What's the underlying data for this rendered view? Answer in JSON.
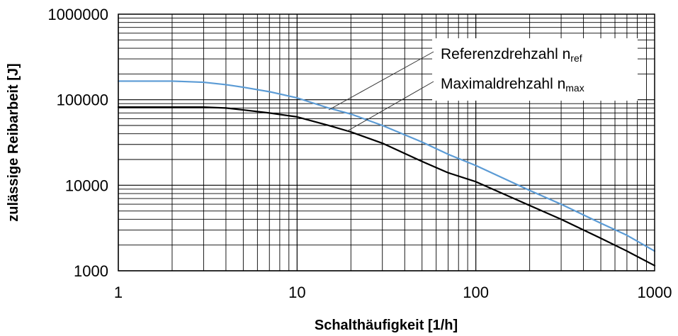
{
  "chart_data": {
    "type": "line",
    "xlabel": "Schalthäufigkeit [1/h]",
    "ylabel": "zulässige Reibarbeit [J]",
    "xscale": "log",
    "yscale": "log",
    "xlim": [
      1,
      1000
    ],
    "ylim": [
      1000,
      1000000
    ],
    "x_ticks": [
      "1",
      "10",
      "100",
      "1000"
    ],
    "y_ticks": [
      "1000",
      "10000",
      "100000",
      "1000000"
    ],
    "grid": true,
    "legend_position": "top-right",
    "series": [
      {
        "name": "Referenzdrehzahl n",
        "name_sub": "ref",
        "color": "#5b9bd5",
        "x": [
          1,
          2,
          3,
          4,
          5,
          7,
          10,
          15,
          20,
          30,
          50,
          70,
          100,
          200,
          300,
          500,
          700,
          1000
        ],
        "y": [
          165000,
          165000,
          160000,
          150000,
          140000,
          124000,
          105000,
          80000,
          68000,
          50000,
          32000,
          23000,
          17000,
          8700,
          6000,
          3600,
          2600,
          1700
        ]
      },
      {
        "name": "Maximaldrehzahl n",
        "name_sub": "max",
        "color": "#000000",
        "x": [
          1,
          2,
          3,
          4,
          5,
          7,
          10,
          15,
          20,
          30,
          50,
          70,
          100,
          200,
          300,
          500,
          700,
          1000
        ],
        "y": [
          82000,
          82000,
          82000,
          80000,
          76000,
          70000,
          63000,
          50000,
          42000,
          31000,
          19000,
          14000,
          11000,
          5800,
          4000,
          2400,
          1700,
          1150
        ]
      }
    ]
  }
}
